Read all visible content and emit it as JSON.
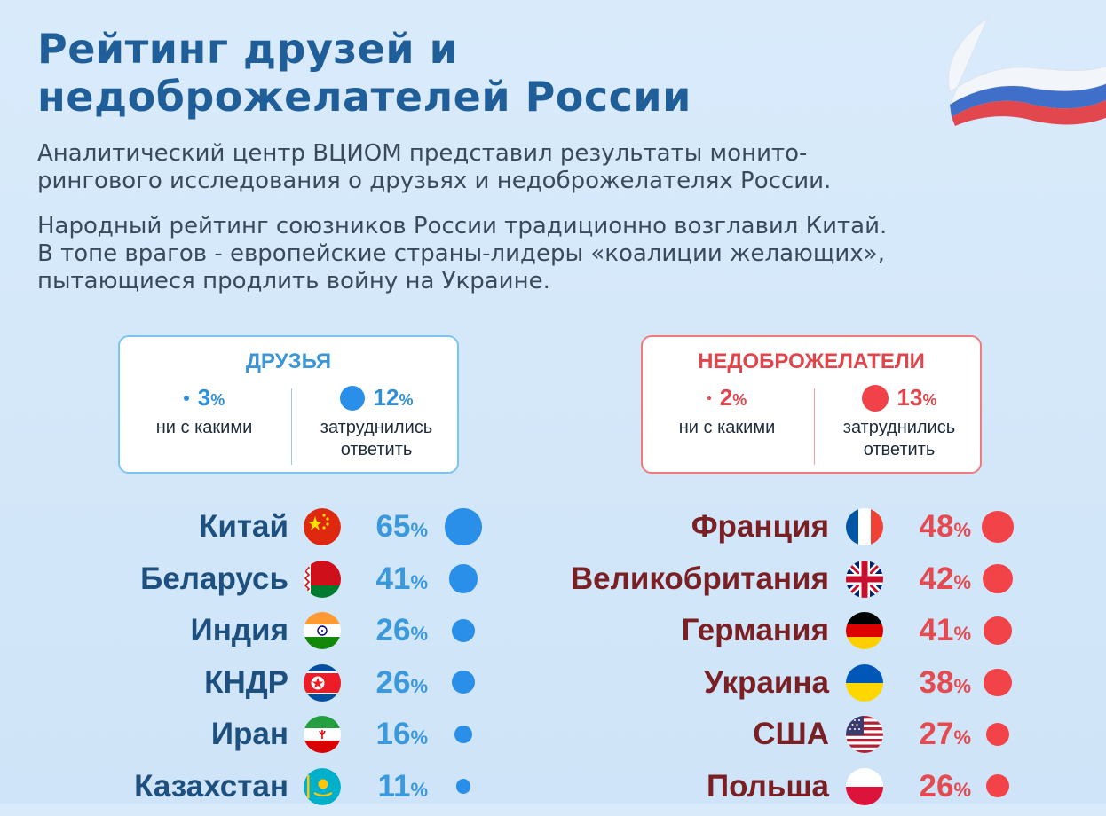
{
  "header": {
    "title_line1": "Рейтинг друзей и",
    "title_line2": "недоброжелателей России"
  },
  "intro": {
    "p1_line1": "Аналитический центр ВЦИОМ представил результаты монито-",
    "p1_line2": "рингового исследования о друзьях и недоброжелателях России.",
    "p2_line1": "Народный рейтинг союзников России традиционно возглавил Китай.",
    "p2_line2": "В топе врагов - европейские страны-лидеры «коалиции желающих»,",
    "p2_line3": "пытающиеся продлить войну на Украине."
  },
  "colors": {
    "friends_accent": "#2a8fe8",
    "foes_accent": "#f24349",
    "title_blue": "#1f5e98"
  },
  "summary": {
    "friends": {
      "title": "ДРУЗЬЯ",
      "none_value": "3",
      "none_label": "ни с какими",
      "undecided_value": "12",
      "undecided_label_1": "затруднились",
      "undecided_label_2": "ответить",
      "pct_sign": "%"
    },
    "foes": {
      "title": "НЕДОБРОЖЕЛАТЕЛИ",
      "none_value": "2",
      "none_label": "ни с какими",
      "undecided_value": "13",
      "undecided_label_1": "затруднились",
      "undecided_label_2": "ответить",
      "pct_sign": "%"
    }
  },
  "chart_data": [
    {
      "type": "bar",
      "title": "ДРУЗЬЯ",
      "categories": [
        "Китай",
        "Беларусь",
        "Индия",
        "КНДР",
        "Иран",
        "Казахстан"
      ],
      "values": [
        65,
        41,
        26,
        26,
        16,
        11
      ],
      "unit": "%",
      "flags": [
        "china-flag-icon",
        "belarus-flag-icon",
        "india-flag-icon",
        "north-korea-flag-icon",
        "iran-flag-icon",
        "kazakhstan-flag-icon"
      ],
      "color": "#2a8fe8"
    },
    {
      "type": "bar",
      "title": "НЕДОБРОЖЕЛАТЕЛИ",
      "categories": [
        "Франция",
        "Великобритания",
        "Германия",
        "Украина",
        "США",
        "Польша"
      ],
      "values": [
        48,
        42,
        41,
        38,
        27,
        26
      ],
      "unit": "%",
      "flags": [
        "france-flag-icon",
        "uk-flag-icon",
        "germany-flag-icon",
        "ukraine-flag-icon",
        "usa-flag-icon",
        "poland-flag-icon"
      ],
      "color": "#f24349"
    }
  ]
}
